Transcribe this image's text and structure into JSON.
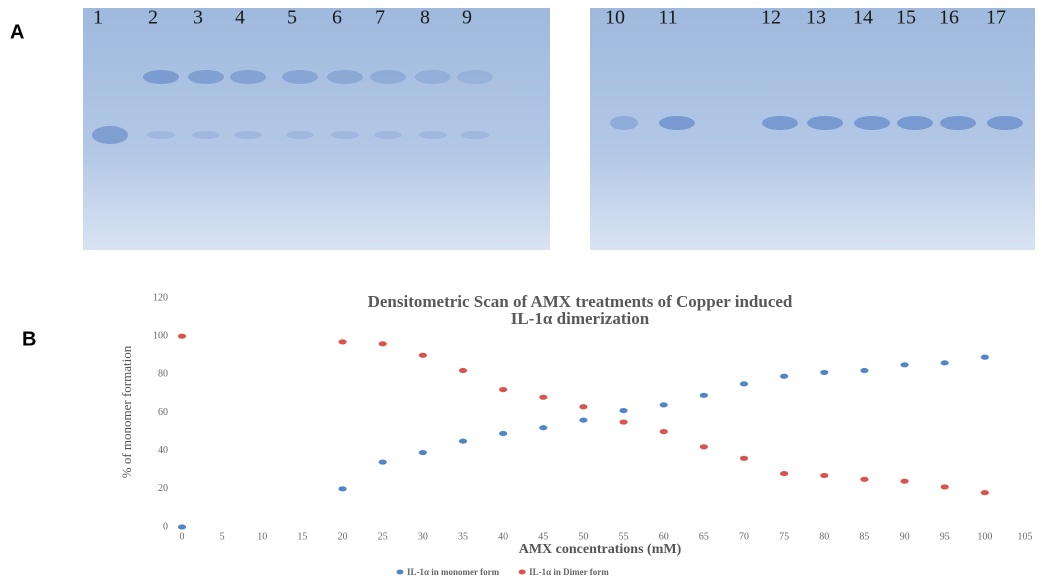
{
  "panel_a": {
    "label": "A",
    "lanes_left": [
      "1",
      "2",
      "3",
      "4",
      "5",
      "6",
      "7",
      "8",
      "9"
    ],
    "lanes_right": [
      "10",
      "11",
      "12",
      "13",
      "14",
      "15",
      "16",
      "17"
    ]
  },
  "panel_b": {
    "label": "B"
  },
  "chart_data": {
    "type": "scatter",
    "title": [
      "Densitometric Scan of AMX treatments of Copper induced",
      "IL-1α dimerization"
    ],
    "x_label": "AMX concentrations (mM)",
    "y_label": "% of monomer formation",
    "x": [
      0,
      20,
      25,
      30,
      35,
      40,
      45,
      50,
      55,
      60,
      65,
      70,
      75,
      80,
      85,
      90,
      95,
      100
    ],
    "series": [
      {
        "name": "IL-1α in monomer form",
        "color": "#4f86c6",
        "values": [
          0,
          20,
          34,
          39,
          45,
          49,
          52,
          56,
          61,
          64,
          69,
          75,
          79,
          81,
          82,
          85,
          86,
          89
        ]
      },
      {
        "name": "IL-1α in Dimer form",
        "color": "#d9534f",
        "values": [
          100,
          97,
          96,
          90,
          82,
          72,
          68,
          63,
          55,
          50,
          42,
          36,
          28,
          27,
          25,
          24,
          21,
          18
        ]
      }
    ],
    "xlim": [
      0,
      105
    ],
    "xticks": [
      0,
      5,
      10,
      15,
      20,
      25,
      30,
      35,
      40,
      45,
      50,
      55,
      60,
      65,
      70,
      75,
      80,
      85,
      90,
      95,
      100,
      105
    ],
    "ylim": [
      0,
      120
    ],
    "yticks": [
      0,
      20,
      40,
      60,
      80,
      100,
      120
    ],
    "grid": false,
    "legend": "bottom"
  }
}
